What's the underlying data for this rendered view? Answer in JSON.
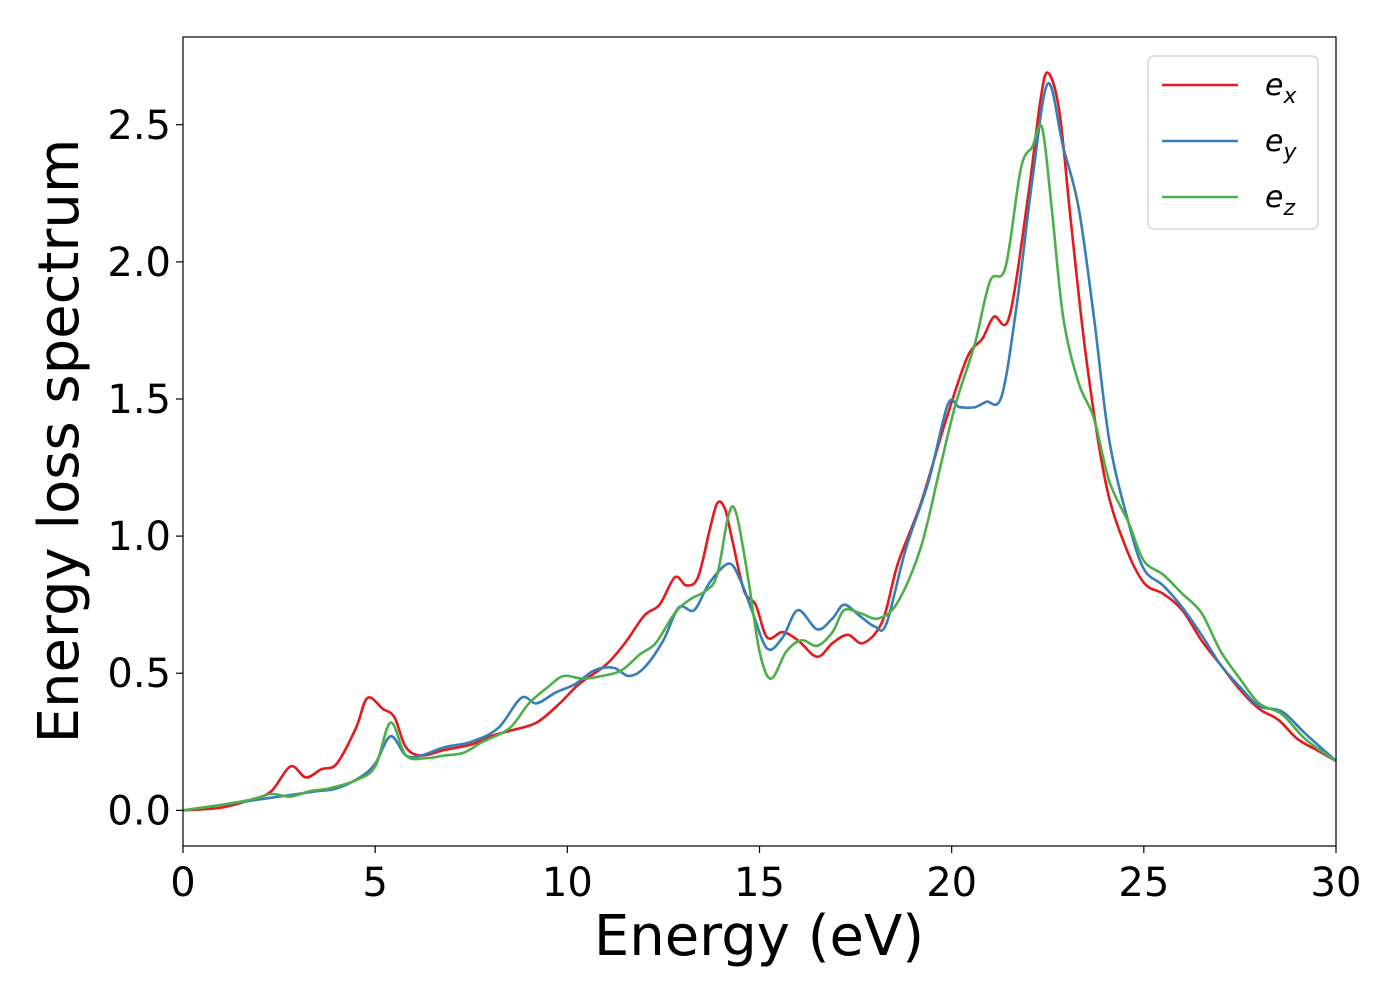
{
  "chart_data": {
    "type": "line",
    "title": "",
    "xlabel": "Energy (eV)",
    "ylabel": "Energy loss spectrum",
    "xlim": [
      0,
      30
    ],
    "ylim": [
      -0.13,
      2.82
    ],
    "xticks": [
      0,
      5,
      10,
      15,
      20,
      25,
      30
    ],
    "xtick_labels": [
      "0",
      "5",
      "10",
      "15",
      "20",
      "25",
      "30"
    ],
    "yticks": [
      0.0,
      0.5,
      1.0,
      1.5,
      2.0,
      2.5
    ],
    "ytick_labels": [
      "0.0",
      "0.5",
      "1.0",
      "1.5",
      "2.0",
      "2.5"
    ],
    "grid": false,
    "legend_position": "top-right",
    "series": [
      {
        "name": "e_x",
        "name_base": "e",
        "name_sub": "x",
        "color": "#e41a1c",
        "points": [
          [
            0,
            0
          ],
          [
            1,
            0.01
          ],
          [
            1.8,
            0.04
          ],
          [
            2.3,
            0.07
          ],
          [
            2.8,
            0.16
          ],
          [
            3.2,
            0.12
          ],
          [
            3.6,
            0.15
          ],
          [
            4.0,
            0.17
          ],
          [
            4.5,
            0.3
          ],
          [
            4.8,
            0.41
          ],
          [
            5.2,
            0.37
          ],
          [
            5.5,
            0.34
          ],
          [
            5.8,
            0.23
          ],
          [
            6.2,
            0.2
          ],
          [
            6.8,
            0.22
          ],
          [
            7.5,
            0.24
          ],
          [
            8.0,
            0.27
          ],
          [
            8.5,
            0.29
          ],
          [
            9.2,
            0.32
          ],
          [
            9.8,
            0.39
          ],
          [
            10.3,
            0.46
          ],
          [
            11.0,
            0.53
          ],
          [
            11.5,
            0.61
          ],
          [
            12.0,
            0.71
          ],
          [
            12.4,
            0.75
          ],
          [
            12.8,
            0.85
          ],
          [
            13.1,
            0.82
          ],
          [
            13.4,
            0.85
          ],
          [
            13.7,
            1.02
          ],
          [
            13.9,
            1.12
          ],
          [
            14.1,
            1.1
          ],
          [
            14.3,
            0.98
          ],
          [
            14.6,
            0.8
          ],
          [
            14.9,
            0.75
          ],
          [
            15.2,
            0.63
          ],
          [
            15.6,
            0.65
          ],
          [
            16.0,
            0.62
          ],
          [
            16.5,
            0.56
          ],
          [
            16.9,
            0.61
          ],
          [
            17.3,
            0.64
          ],
          [
            17.7,
            0.61
          ],
          [
            18.2,
            0.69
          ],
          [
            18.6,
            0.9
          ],
          [
            19.2,
            1.12
          ],
          [
            19.8,
            1.4
          ],
          [
            20.4,
            1.65
          ],
          [
            20.8,
            1.72
          ],
          [
            21.1,
            1.8
          ],
          [
            21.5,
            1.8
          ],
          [
            22.0,
            2.25
          ],
          [
            22.3,
            2.58
          ],
          [
            22.5,
            2.69
          ],
          [
            22.8,
            2.55
          ],
          [
            23.1,
            2.15
          ],
          [
            23.5,
            1.65
          ],
          [
            24.0,
            1.2
          ],
          [
            24.5,
            0.97
          ],
          [
            25.0,
            0.83
          ],
          [
            25.5,
            0.79
          ],
          [
            26.0,
            0.73
          ],
          [
            26.5,
            0.62
          ],
          [
            27.0,
            0.53
          ],
          [
            27.5,
            0.44
          ],
          [
            28.0,
            0.37
          ],
          [
            28.5,
            0.33
          ],
          [
            29.0,
            0.26
          ],
          [
            29.5,
            0.22
          ],
          [
            30.0,
            0.18
          ]
        ]
      },
      {
        "name": "e_y",
        "name_base": "e",
        "name_sub": "y",
        "color": "#377eb8",
        "points": [
          [
            0,
            0
          ],
          [
            1,
            0.02
          ],
          [
            2.0,
            0.04
          ],
          [
            2.5,
            0.05
          ],
          [
            3.0,
            0.06
          ],
          [
            3.5,
            0.07
          ],
          [
            4.0,
            0.08
          ],
          [
            4.6,
            0.12
          ],
          [
            5.0,
            0.17
          ],
          [
            5.4,
            0.27
          ],
          [
            5.8,
            0.2
          ],
          [
            6.2,
            0.2
          ],
          [
            6.8,
            0.23
          ],
          [
            7.5,
            0.25
          ],
          [
            8.2,
            0.3
          ],
          [
            8.8,
            0.41
          ],
          [
            9.2,
            0.39
          ],
          [
            9.7,
            0.43
          ],
          [
            10.2,
            0.46
          ],
          [
            10.7,
            0.51
          ],
          [
            11.2,
            0.52
          ],
          [
            11.6,
            0.49
          ],
          [
            12.0,
            0.52
          ],
          [
            12.5,
            0.62
          ],
          [
            12.9,
            0.74
          ],
          [
            13.3,
            0.73
          ],
          [
            13.7,
            0.83
          ],
          [
            14.2,
            0.9
          ],
          [
            14.5,
            0.84
          ],
          [
            14.8,
            0.73
          ],
          [
            15.2,
            0.59
          ],
          [
            15.6,
            0.63
          ],
          [
            16.0,
            0.73
          ],
          [
            16.5,
            0.66
          ],
          [
            16.9,
            0.7
          ],
          [
            17.2,
            0.75
          ],
          [
            17.6,
            0.71
          ],
          [
            18.0,
            0.67
          ],
          [
            18.3,
            0.68
          ],
          [
            18.8,
            0.95
          ],
          [
            19.4,
            1.2
          ],
          [
            19.9,
            1.48
          ],
          [
            20.2,
            1.47
          ],
          [
            20.6,
            1.47
          ],
          [
            20.9,
            1.49
          ],
          [
            21.3,
            1.51
          ],
          [
            21.7,
            1.85
          ],
          [
            22.1,
            2.3
          ],
          [
            22.5,
            2.65
          ],
          [
            22.9,
            2.42
          ],
          [
            23.3,
            2.2
          ],
          [
            23.7,
            1.8
          ],
          [
            24.1,
            1.35
          ],
          [
            24.6,
            1.05
          ],
          [
            25.0,
            0.88
          ],
          [
            25.5,
            0.82
          ],
          [
            26.0,
            0.74
          ],
          [
            26.5,
            0.64
          ],
          [
            27.0,
            0.53
          ],
          [
            27.5,
            0.45
          ],
          [
            28.0,
            0.38
          ],
          [
            28.6,
            0.36
          ],
          [
            29.2,
            0.28
          ],
          [
            30.0,
            0.18
          ]
        ]
      },
      {
        "name": "e_z",
        "name_base": "e",
        "name_sub": "z",
        "color": "#4daf4a",
        "points": [
          [
            0,
            0
          ],
          [
            1,
            0.02
          ],
          [
            1.8,
            0.04
          ],
          [
            2.3,
            0.06
          ],
          [
            2.8,
            0.05
          ],
          [
            3.3,
            0.07
          ],
          [
            3.8,
            0.08
          ],
          [
            4.5,
            0.11
          ],
          [
            5.0,
            0.16
          ],
          [
            5.4,
            0.32
          ],
          [
            5.8,
            0.2
          ],
          [
            6.3,
            0.19
          ],
          [
            6.8,
            0.2
          ],
          [
            7.3,
            0.21
          ],
          [
            7.8,
            0.25
          ],
          [
            8.5,
            0.3
          ],
          [
            9.0,
            0.39
          ],
          [
            9.5,
            0.45
          ],
          [
            9.9,
            0.49
          ],
          [
            10.4,
            0.48
          ],
          [
            10.9,
            0.49
          ],
          [
            11.4,
            0.51
          ],
          [
            11.9,
            0.57
          ],
          [
            12.3,
            0.61
          ],
          [
            12.8,
            0.72
          ],
          [
            13.2,
            0.77
          ],
          [
            13.6,
            0.8
          ],
          [
            13.9,
            0.86
          ],
          [
            14.2,
            1.08
          ],
          [
            14.4,
            1.08
          ],
          [
            14.7,
            0.85
          ],
          [
            15.0,
            0.58
          ],
          [
            15.3,
            0.48
          ],
          [
            15.7,
            0.58
          ],
          [
            16.1,
            0.62
          ],
          [
            16.5,
            0.6
          ],
          [
            16.9,
            0.65
          ],
          [
            17.2,
            0.73
          ],
          [
            17.6,
            0.72
          ],
          [
            18.1,
            0.7
          ],
          [
            18.6,
            0.76
          ],
          [
            19.2,
            0.96
          ],
          [
            19.7,
            1.25
          ],
          [
            20.1,
            1.48
          ],
          [
            20.6,
            1.7
          ],
          [
            21.0,
            1.93
          ],
          [
            21.4,
            1.98
          ],
          [
            21.8,
            2.34
          ],
          [
            22.1,
            2.42
          ],
          [
            22.35,
            2.49
          ],
          [
            22.6,
            2.2
          ],
          [
            22.9,
            1.8
          ],
          [
            23.3,
            1.56
          ],
          [
            23.7,
            1.43
          ],
          [
            24.1,
            1.2
          ],
          [
            24.6,
            1.05
          ],
          [
            25.0,
            0.91
          ],
          [
            25.5,
            0.86
          ],
          [
            26.0,
            0.79
          ],
          [
            26.5,
            0.72
          ],
          [
            27.0,
            0.58
          ],
          [
            27.5,
            0.48
          ],
          [
            28.0,
            0.39
          ],
          [
            28.6,
            0.35
          ],
          [
            29.2,
            0.26
          ],
          [
            30.0,
            0.18
          ]
        ]
      }
    ]
  }
}
